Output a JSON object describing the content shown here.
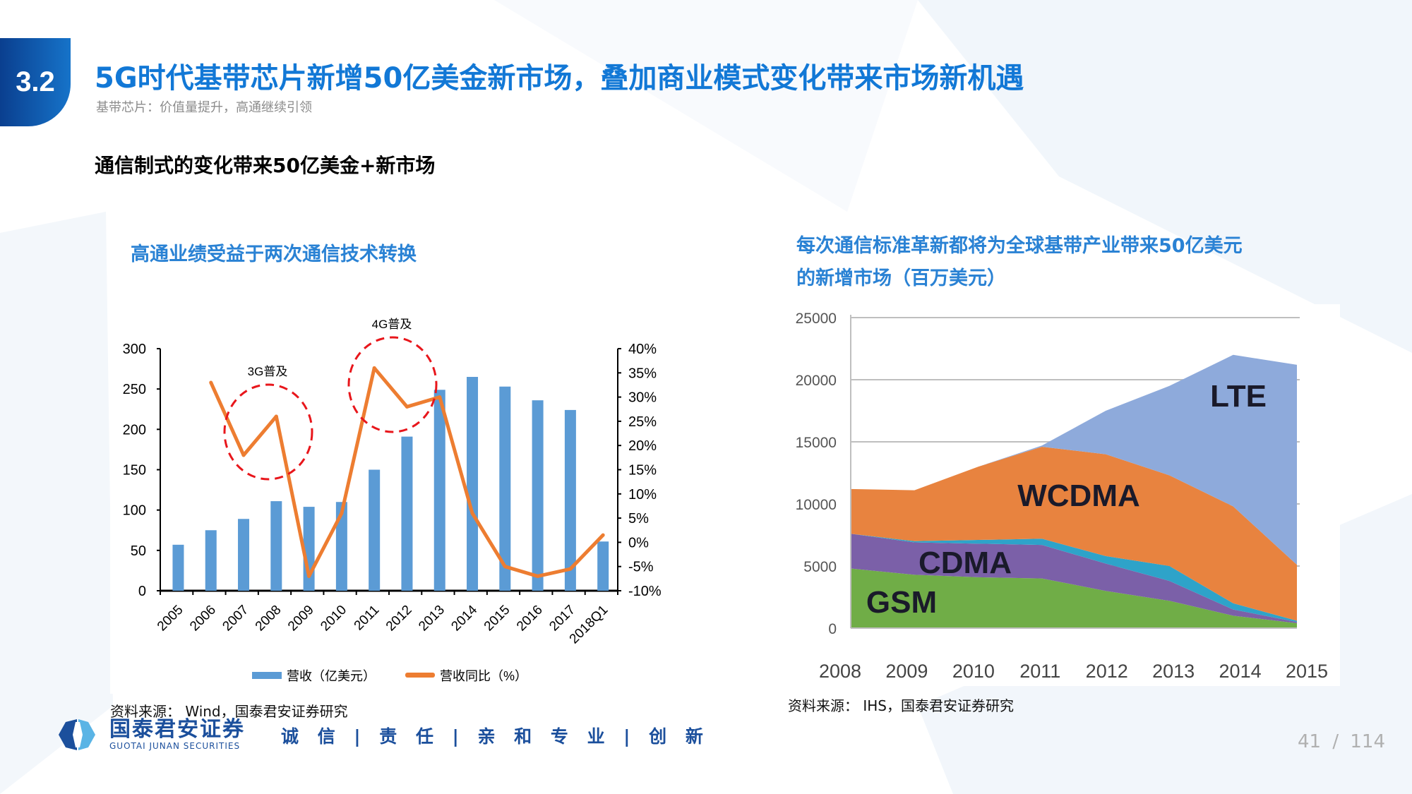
{
  "header": {
    "section_number": "3.2",
    "title": "5G时代基带芯片新增50亿美金新市场，叠加商业模式变化带来市场新机遇",
    "subtitle": "基带芯片：价值量提升，高通继续引领"
  },
  "section_heading": "通信制式的变化带来50亿美金+新市场",
  "left_chart": {
    "title": "高通业绩受益于两次通信技术转换",
    "source": "资料来源：  Wind，国泰君安证券研究"
  },
  "right_chart": {
    "title_line1": "每次通信标准革新都将为全球基带产业带来50亿美元",
    "title_line2": "的新增市场（百万美元）",
    "source": "资料来源：  IHS，国泰君安证券研究"
  },
  "footer": {
    "logo_name": "国泰君安证券",
    "logo_en": "GUOTAI JUNAN SECURITIES",
    "motto": "诚 信 | 责 任 | 亲 和  专 业 | 创 新",
    "page_current": "41",
    "page_sep": "/",
    "page_total": "114"
  },
  "colors": {
    "brand_blue": "#1278d6",
    "bar": "#5b9bd5",
    "line": "#ed7d31",
    "annotation": "#e8161b"
  },
  "chart_data": [
    {
      "type": "bar+line",
      "categories": [
        "2005",
        "2006",
        "2007",
        "2008",
        "2009",
        "2010",
        "2011",
        "2012",
        "2013",
        "2014",
        "2015",
        "2016",
        "2017",
        "2018Q1"
      ],
      "series": [
        {
          "name": "营收（亿美元）",
          "type": "bar",
          "axis": "left",
          "values": [
            57,
            75,
            89,
            111,
            104,
            110,
            150,
            191,
            249,
            265,
            253,
            236,
            224,
            61
          ]
        },
        {
          "name": "营收同比（%）",
          "type": "line",
          "axis": "right",
          "values": [
            null,
            33,
            18,
            26,
            -7,
            6,
            36,
            28,
            30,
            6,
            -5,
            -7,
            -5.5,
            1.5
          ]
        }
      ],
      "y_left": {
        "range": [
          0,
          300
        ],
        "ticks": [
          "0",
          "50",
          "100",
          "150",
          "200",
          "250",
          "300"
        ]
      },
      "y_right": {
        "range": [
          -10,
          40
        ],
        "ticks": [
          "-10%",
          "-5%",
          "0%",
          "5%",
          "10%",
          "15%",
          "20%",
          "25%",
          "30%",
          "35%",
          "40%"
        ]
      },
      "annotations": [
        {
          "text": "3G普及",
          "around": [
            "2007",
            "2008"
          ]
        },
        {
          "text": "4G普及",
          "around": [
            "2011",
            "2012"
          ]
        }
      ],
      "legend": "bottom",
      "grid": false
    },
    {
      "type": "area",
      "stacked": true,
      "x": [
        "2008",
        "2009",
        "2010",
        "2011",
        "2012",
        "2013",
        "2014",
        "2015"
      ],
      "series": [
        {
          "name": "GSM",
          "color": "#70ad47",
          "values": [
            4800,
            4300,
            4100,
            4000,
            3000,
            2200,
            1000,
            400
          ]
        },
        {
          "name": "CDMA",
          "color": "#7b60a8",
          "values": [
            2800,
            2600,
            2700,
            2700,
            2200,
            1600,
            500,
            100
          ]
        },
        {
          "name": "",
          "color": "#2ea3c9",
          "values": [
            0,
            100,
            300,
            500,
            600,
            1200,
            500,
            100
          ]
        },
        {
          "name": "WCDMA",
          "color": "#e8833f",
          "values": [
            3600,
            4100,
            5900,
            7400,
            8200,
            7300,
            7800,
            4500
          ]
        },
        {
          "name": "LTE",
          "color": "#8eaadb",
          "values": [
            0,
            0,
            0,
            100,
            3500,
            7200,
            12200,
            16100
          ]
        }
      ],
      "y": {
        "range": [
          0,
          25000
        ],
        "ticks": [
          "0",
          "5000",
          "10000",
          "15000",
          "20000",
          "25000"
        ]
      },
      "grid": true,
      "legend": "labels inside areas"
    }
  ]
}
